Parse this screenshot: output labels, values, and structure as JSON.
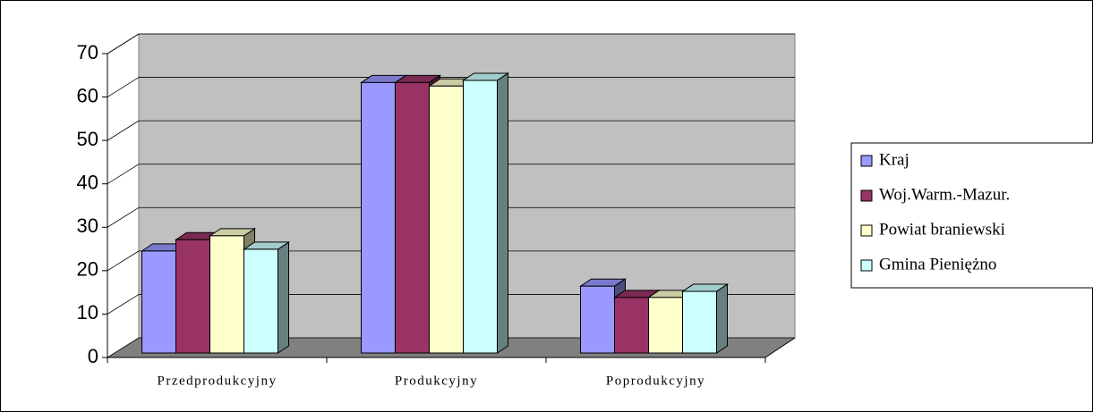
{
  "chart_data": {
    "type": "bar3d",
    "categories": [
      "Przedprodukcyjny",
      "Produkcyjny",
      "Poprodukcyjny"
    ],
    "series": [
      {
        "name": "Kraj",
        "color": "#9999ff",
        "values": [
          23.5,
          62.3,
          15.4
        ]
      },
      {
        "name": "Woj.Warm.-Mazur.",
        "color": "#993366",
        "values": [
          26.1,
          62.3,
          12.8
        ]
      },
      {
        "name": "Powiat braniewski",
        "color": "#ffffcc",
        "values": [
          27.0,
          61.5,
          12.8
        ]
      },
      {
        "name": "Gmina Pieniężno",
        "color": "#ccffff",
        "values": [
          23.9,
          62.8,
          14.2
        ]
      }
    ],
    "ylim": [
      0,
      70
    ],
    "yticks": [
      0,
      10,
      20,
      30,
      40,
      50,
      60,
      70
    ],
    "grid": true,
    "legend": "right"
  }
}
